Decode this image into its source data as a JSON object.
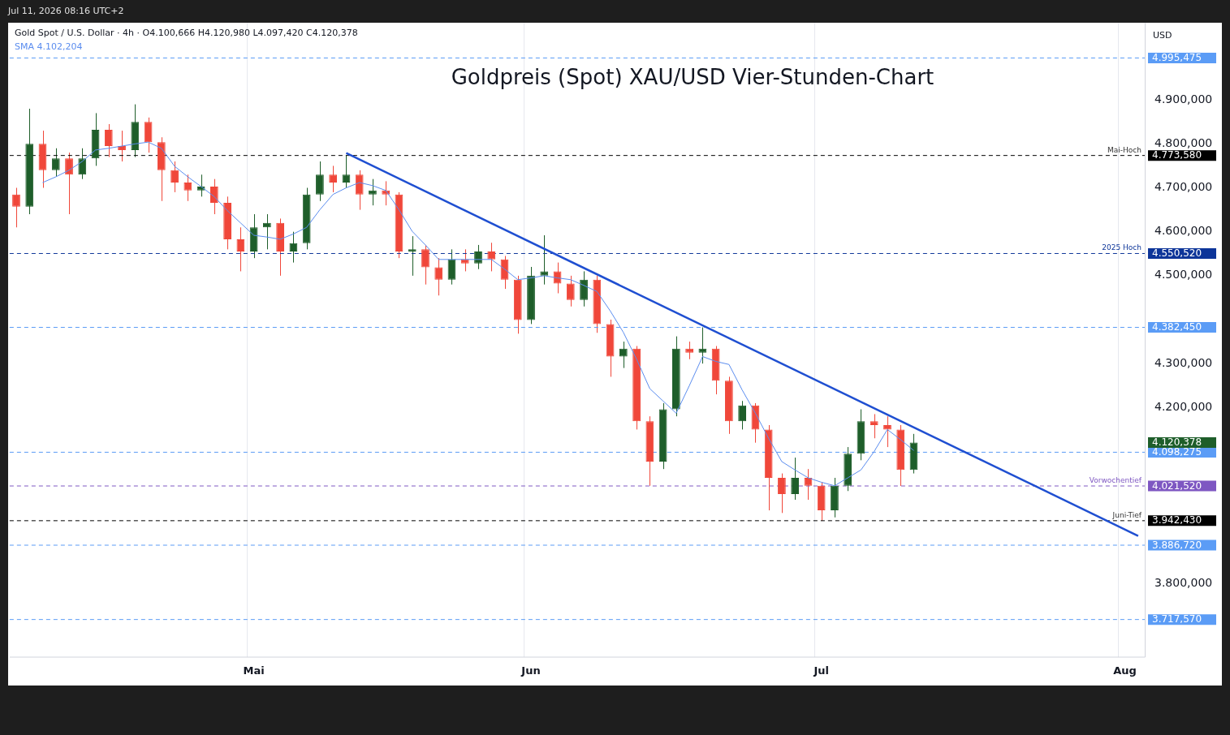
{
  "chart_data": {
    "type": "candlestick",
    "title": "Goldpreis (Spot) XAU/USD Vier-Stunden-Chart",
    "subtitle": "Gold Spot / U.S. Dollar · 4h · O4.100,666 H4.120,980 L4.097,420 C4.120,378",
    "ylabel": "USD",
    "annotations": [
      "Jul 11, 2026 08:16 UTC+2",
      "4.102,204",
      "4.120,378",
      {
        "text": "Mai-Hoch",
        "y": 4773.58
      },
      {
        "text": "2025 Hoch",
        "y": 4550.52
      },
      {
        "text": "Vorwochentief",
        "y": 4021.52
      },
      {
        "text": "Juni-Tief",
        "y": 3942.43
      }
    ],
    "categories": [
      null,
      null,
      null,
      null,
      null,
      null,
      null,
      null,
      null,
      null,
      null,
      null,
      null,
      null,
      null,
      null,
      null,
      null,
      "Mai",
      null,
      null,
      null,
      null,
      null,
      null,
      null,
      null,
      null,
      null,
      null,
      null,
      null,
      null,
      null,
      null,
      null,
      null,
      null,
      null,
      "Jun",
      null,
      null,
      null,
      null,
      null,
      null,
      null,
      null,
      null,
      null,
      null,
      null,
      null,
      null,
      null,
      null,
      null,
      null,
      null,
      null,
      null,
      "Jul",
      null,
      null,
      null,
      null,
      null,
      null,
      null,
      null,
      null,
      null,
      null,
      null,
      null,
      null,
      null,
      null,
      null,
      null,
      null,
      null,
      null,
      null,
      "Aug",
      null
    ],
    "ohlc": [
      [
        4685,
        4700,
        4610,
        4657
      ],
      [
        4657,
        4880,
        4640,
        4800
      ],
      [
        4800,
        4830,
        4700,
        4740
      ],
      [
        4740,
        4790,
        4725,
        4767
      ],
      [
        4767,
        4780,
        4640,
        4730
      ],
      [
        4730,
        4790,
        4720,
        4767
      ],
      [
        4767,
        4870,
        4750,
        4832
      ],
      [
        4832,
        4845,
        4770,
        4795
      ],
      [
        4795,
        4830,
        4760,
        4786
      ],
      [
        4786,
        4890,
        4770,
        4850
      ],
      [
        4850,
        4860,
        4780,
        4804
      ],
      [
        4804,
        4815,
        4670,
        4740
      ],
      [
        4740,
        4760,
        4690,
        4712
      ],
      [
        4712,
        4730,
        4670,
        4694
      ],
      [
        4694,
        4730,
        4680,
        4703
      ],
      [
        4703,
        4720,
        4640,
        4666
      ],
      [
        4666,
        4680,
        4560,
        4583
      ],
      [
        4583,
        4610,
        4510,
        4555
      ],
      [
        4555,
        4640,
        4540,
        4610
      ],
      [
        4610,
        4640,
        4560,
        4620
      ],
      [
        4620,
        4630,
        4500,
        4555
      ],
      [
        4555,
        4600,
        4530,
        4574
      ],
      [
        4574,
        4700,
        4560,
        4685
      ],
      [
        4685,
        4760,
        4670,
        4730
      ],
      [
        4730,
        4750,
        4690,
        4712
      ],
      [
        4712,
        4773.58,
        4700,
        4730
      ],
      [
        4730,
        4740,
        4650,
        4685
      ],
      [
        4685,
        4720,
        4660,
        4694
      ],
      [
        4694,
        4715,
        4660,
        4685
      ],
      [
        4685,
        4690,
        4540,
        4555
      ],
      [
        4555,
        4590,
        4500,
        4560
      ],
      [
        4560,
        4570,
        4480,
        4519
      ],
      [
        4519,
        4540,
        4455,
        4491
      ],
      [
        4491,
        4560,
        4480,
        4537
      ],
      [
        4537,
        4560,
        4510,
        4528
      ],
      [
        4528,
        4570,
        4515,
        4555
      ],
      [
        4555,
        4575,
        4510,
        4537
      ],
      [
        4537,
        4545,
        4470,
        4491
      ],
      [
        4491,
        4500,
        4368,
        4399
      ],
      [
        4399,
        4520,
        4390,
        4500
      ],
      [
        4500,
        4592,
        4480,
        4510
      ],
      [
        4510,
        4530,
        4460,
        4482
      ],
      [
        4482,
        4500,
        4430,
        4445
      ],
      [
        4445,
        4510,
        4430,
        4491
      ],
      [
        4491,
        4500,
        4370,
        4390
      ],
      [
        4390,
        4400,
        4270,
        4316
      ],
      [
        4316,
        4350,
        4290,
        4334
      ],
      [
        4334,
        4340,
        4150,
        4169
      ],
      [
        4169,
        4180,
        4022,
        4077
      ],
      [
        4077,
        4210,
        4060,
        4196
      ],
      [
        4196,
        4362,
        4180,
        4334
      ],
      [
        4334,
        4350,
        4310,
        4325
      ],
      [
        4325,
        4382.45,
        4300,
        4334
      ],
      [
        4334,
        4340,
        4230,
        4261
      ],
      [
        4261,
        4270,
        4140,
        4169
      ],
      [
        4169,
        4215,
        4150,
        4205
      ],
      [
        4205,
        4210,
        4120,
        4150
      ],
      [
        4150,
        4160,
        3966,
        4040
      ],
      [
        4040,
        4050,
        3960,
        4003
      ],
      [
        4003,
        4086,
        3990,
        4040
      ],
      [
        4040,
        4060,
        3990,
        4022
      ],
      [
        4022,
        4030,
        3942.43,
        3966
      ],
      [
        3966,
        4040,
        3950,
        4022
      ],
      [
        4022,
        4110,
        4010,
        4095
      ],
      [
        4095,
        4196,
        4080,
        4169
      ],
      [
        4169,
        4185,
        4130,
        4160
      ],
      [
        4160,
        4180,
        4110,
        4150
      ],
      [
        4150,
        4160,
        4021.52,
        4058
      ],
      [
        4058,
        4140,
        4050,
        4120.378
      ],
      null,
      null,
      null,
      null,
      null,
      null,
      null,
      null,
      null,
      null,
      null,
      null,
      null,
      null,
      null,
      null,
      null
    ],
    "colors": [
      "#f0473a",
      "#1e5e2a",
      "#f0473a",
      "#1e5e2a",
      "#f0473a",
      "#1e5e2a",
      "#1e5e2a",
      "#f0473a",
      "#f0473a",
      "#1e5e2a",
      "#f0473a",
      "#f0473a",
      "#f0473a",
      "#f0473a",
      "#1e5e2a",
      "#f0473a",
      "#f0473a",
      "#f0473a",
      "#1e5e2a",
      "#1e5e2a",
      "#f0473a",
      "#1e5e2a",
      "#1e5e2a",
      "#1e5e2a",
      "#f0473a",
      "#1e5e2a",
      "#f0473a",
      "#1e5e2a",
      "#f0473a",
      "#f0473a",
      "#1e5e2a",
      "#f0473a",
      "#f0473a",
      "#1e5e2a",
      "#f0473a",
      "#1e5e2a",
      "#f0473a",
      "#f0473a",
      "#f0473a",
      "#1e5e2a",
      "#1e5e2a",
      "#f0473a",
      "#f0473a",
      "#1e5e2a",
      "#f0473a",
      "#f0473a",
      "#1e5e2a",
      "#f0473a",
      "#f0473a",
      "#1e5e2a",
      "#1e5e2a",
      "#f0473a",
      "#1e5e2a",
      "#f0473a",
      "#f0473a",
      "#1e5e2a",
      "#f0473a",
      "#f0473a",
      "#f0473a",
      "#1e5e2a",
      "#f0473a",
      "#f0473a",
      "#1e5e2a",
      "#1e5e2a",
      "#1e5e2a",
      "#f0473a",
      "#f0473a",
      "#f0473a",
      "#1e5e2a",
      null,
      null,
      null,
      null,
      null,
      null,
      null,
      null,
      null,
      null,
      null,
      null,
      null,
      null,
      null,
      null,
      null
    ],
    "series": [
      {
        "type": "line",
        "name": "SMA",
        "color": "#5b8def",
        "values": [
          null,
          null,
          4712,
          4725,
          4740,
          4760,
          4786,
          4790,
          4795,
          4800,
          4804,
          4790,
          4749,
          4725,
          4703,
          4680,
          4648,
          4620,
          4592,
          4588,
          4583,
          4595,
          4610,
          4650,
          4685,
          4700,
          4712,
          4705,
          4694,
          4650,
          4601,
          4570,
          4537,
          4537,
          4537,
          4537,
          4537,
          4515,
          4491,
          4495,
          4500,
          4495,
          4491,
          4478,
          4464,
          4420,
          4371,
          4310,
          4243,
          4215,
          4187,
          4250,
          4316,
          4305,
          4298,
          4240,
          4187,
          4130,
          4077,
          4058,
          4040,
          4030,
          4022,
          4040,
          4058,
          4100,
          4150,
          4127,
          4102.204,
          null,
          null,
          null,
          null,
          null,
          null,
          null,
          null,
          null,
          null,
          null,
          null,
          null,
          null,
          null,
          null,
          null
        ]
      },
      {
        "type": "line",
        "color": "#1f4fd1",
        "values": [
          null,
          null,
          null,
          null,
          null,
          null,
          null,
          null,
          null,
          null,
          null,
          null,
          null,
          null,
          null,
          null,
          null,
          null,
          null,
          null,
          null,
          null,
          null,
          null,
          null,
          4779,
          null,
          null,
          null,
          null,
          null,
          null,
          null,
          null,
          null,
          null,
          null,
          null,
          null,
          null,
          null,
          null,
          null,
          null,
          null,
          null,
          null,
          null,
          null,
          null,
          null,
          null,
          null,
          null,
          null,
          null,
          null,
          null,
          null,
          null,
          null,
          null,
          null,
          null,
          null,
          null,
          null,
          null,
          null,
          null,
          null,
          null,
          null,
          null,
          null,
          null,
          null,
          null,
          null,
          null,
          null,
          null,
          null,
          null,
          null,
          3908
        ]
      }
    ],
    "ylim": [
      3632,
      5075
    ],
    "yticks": [
      {
        "value": 3800,
        "label": "3.800,000"
      },
      {
        "value": 4200,
        "label": "4.200,000"
      },
      {
        "value": 4300,
        "label": "4.300,000"
      },
      {
        "value": 4500,
        "label": "4.500,000"
      },
      {
        "value": 4600,
        "label": "4.600,000"
      },
      {
        "value": 4700,
        "label": "4.700,000"
      },
      {
        "value": 4800,
        "label": "4.800,000"
      },
      {
        "value": 4900,
        "label": "4.900,000"
      }
    ],
    "ref_lines": [
      {
        "axis": "y",
        "value": 4995.475,
        "label": "4.995,475",
        "color": "#5b9cf6",
        "line_style": "dashed"
      },
      {
        "axis": "y",
        "value": 4773.58,
        "label": "4.773,580",
        "color": "#000000",
        "line_style": "dashed"
      },
      {
        "axis": "y",
        "value": 4550.52,
        "label": "4.550,520",
        "color": "#0d3599",
        "line_style": "dashed"
      },
      {
        "axis": "y",
        "value": 4382.45,
        "label": "4.382,450",
        "color": "#5b9cf6",
        "line_style": "dashed"
      },
      {
        "axis": "y",
        "value": 4098.275,
        "label": "4.098,275",
        "color": "#5b9cf6",
        "line_style": "dashed"
      },
      {
        "axis": "y",
        "value": 4021.52,
        "label": "4.021,520",
        "color": "#7e57c2",
        "line_style": "dashed"
      },
      {
        "axis": "y",
        "value": 3942.43,
        "label": "3.942,430",
        "color": "#000000",
        "line_style": "dashed"
      },
      {
        "axis": "y",
        "value": 3886.72,
        "label": "3.886,720",
        "color": "#5b9cf6",
        "line_style": "dashed"
      },
      {
        "axis": "y",
        "value": 3717.57,
        "label": "3.717,570",
        "color": "#5b9cf6",
        "line_style": "dashed"
      }
    ],
    "grid": "x",
    "legend": "top left"
  }
}
